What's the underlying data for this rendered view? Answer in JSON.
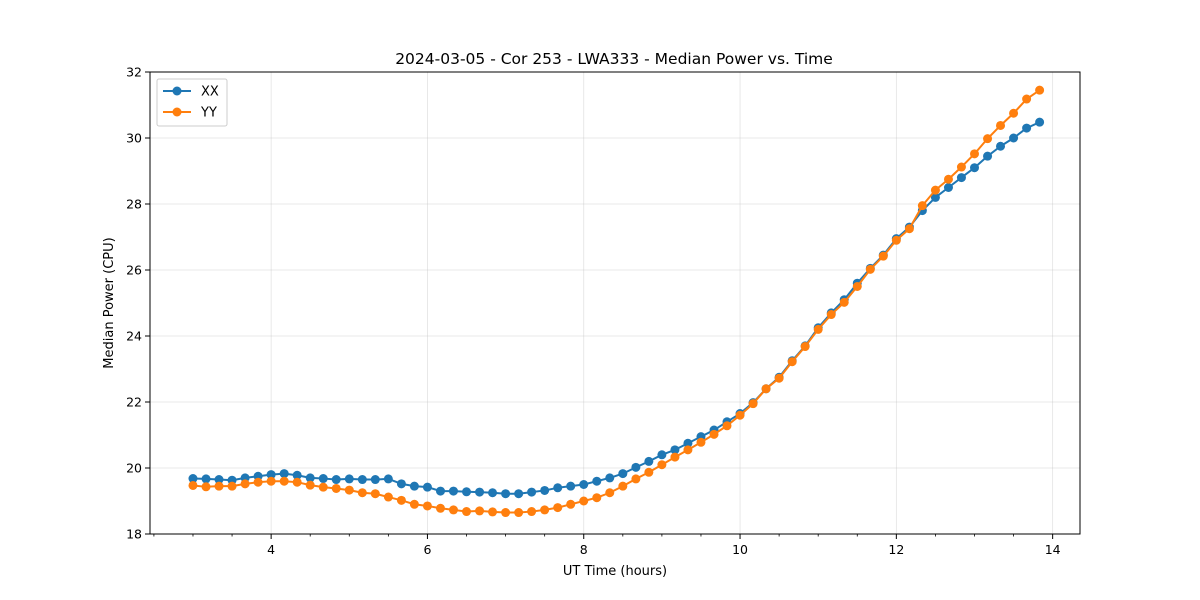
{
  "chart_data": {
    "type": "line",
    "title": "2024-03-05 - Cor 253 - LWA333 - Median Power vs. Time",
    "xlabel": "UT Time (hours)",
    "ylabel": "Median Power (CPU)",
    "xlim": [
      2.45,
      14.35
    ],
    "ylim": [
      18,
      32
    ],
    "xticks": [
      4,
      6,
      8,
      10,
      12,
      14
    ],
    "yticks": [
      18,
      20,
      22,
      24,
      26,
      28,
      30,
      32
    ],
    "grid": true,
    "legend_position": "top-left",
    "x": [
      3.0,
      3.167,
      3.333,
      3.5,
      3.667,
      3.833,
      4.0,
      4.167,
      4.333,
      4.5,
      4.667,
      4.833,
      5.0,
      5.167,
      5.333,
      5.5,
      5.667,
      5.833,
      6.0,
      6.167,
      6.333,
      6.5,
      6.667,
      6.833,
      7.0,
      7.167,
      7.333,
      7.5,
      7.667,
      7.833,
      8.0,
      8.167,
      8.333,
      8.5,
      8.667,
      8.833,
      9.0,
      9.167,
      9.333,
      9.5,
      9.667,
      9.833,
      10.0,
      10.167,
      10.333,
      10.5,
      10.667,
      10.833,
      11.0,
      11.167,
      11.333,
      11.5,
      11.667,
      11.833,
      12.0,
      12.167,
      12.333,
      12.5,
      12.667,
      12.833,
      13.0,
      13.167,
      13.333,
      13.5,
      13.667,
      13.833
    ],
    "series": [
      {
        "name": "XX",
        "color": "#1f77b4",
        "values": [
          19.68,
          19.67,
          19.65,
          19.63,
          19.7,
          19.75,
          19.8,
          19.83,
          19.78,
          19.7,
          19.68,
          19.65,
          19.67,
          19.65,
          19.65,
          19.67,
          19.52,
          19.45,
          19.42,
          19.3,
          19.3,
          19.28,
          19.27,
          19.25,
          19.22,
          19.22,
          19.27,
          19.32,
          19.4,
          19.45,
          19.5,
          19.6,
          19.7,
          19.83,
          20.02,
          20.2,
          20.4,
          20.55,
          20.75,
          20.95,
          21.15,
          21.4,
          21.65,
          21.98,
          22.4,
          22.75,
          23.25,
          23.7,
          24.25,
          24.7,
          25.1,
          25.6,
          26.05,
          26.45,
          26.95,
          27.3,
          27.8,
          28.2,
          28.5,
          28.8,
          29.1,
          29.45,
          29.75,
          30.0,
          30.3,
          30.48
        ]
      },
      {
        "name": "YY",
        "color": "#ff7f0e",
        "values": [
          19.47,
          19.43,
          19.45,
          19.45,
          19.52,
          19.57,
          19.6,
          19.6,
          19.57,
          19.48,
          19.42,
          19.38,
          19.33,
          19.25,
          19.22,
          19.12,
          19.02,
          18.9,
          18.85,
          18.78,
          18.73,
          18.68,
          18.7,
          18.67,
          18.65,
          18.65,
          18.68,
          18.73,
          18.8,
          18.9,
          19.0,
          19.1,
          19.25,
          19.45,
          19.67,
          19.87,
          20.1,
          20.33,
          20.55,
          20.78,
          21.02,
          21.28,
          21.6,
          21.95,
          22.4,
          22.72,
          23.22,
          23.68,
          24.2,
          24.65,
          25.02,
          25.5,
          26.02,
          26.42,
          26.9,
          27.25,
          27.95,
          28.42,
          28.75,
          29.12,
          29.52,
          29.98,
          30.38,
          30.75,
          31.18,
          31.45
        ]
      }
    ]
  }
}
